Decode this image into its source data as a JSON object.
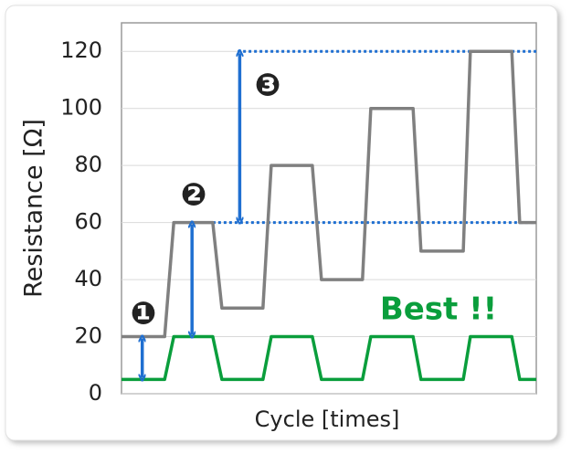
{
  "chart_data": {
    "type": "line",
    "y_label": "Resistance [Ω]",
    "x_label": "Cycle [times]",
    "ylim": [
      0,
      130
    ],
    "yticks": [
      0,
      20,
      40,
      60,
      80,
      100,
      120
    ],
    "grid": true,
    "xlim": [
      0,
      100
    ],
    "series": [
      {
        "name": "Resistance",
        "color": "#808080",
        "x": [
          0,
          10.4,
          12.6,
          22,
          24.2,
          34.1,
          36.1,
          46,
          48.2,
          58.1,
          60.1,
          70.3,
          72.2,
          82.4,
          84.1,
          94.1,
          96,
          100
        ],
        "values": [
          20,
          20,
          60,
          60,
          30,
          30,
          80,
          80,
          40,
          40,
          100,
          100,
          50,
          50,
          120,
          120,
          60,
          60
        ]
      },
      {
        "name": "Best",
        "color": "#0a9e3c",
        "x": [
          0,
          10.4,
          12.6,
          22,
          24.2,
          34.1,
          36.1,
          46,
          48.2,
          58.1,
          60.1,
          70.3,
          72.2,
          82.4,
          84.1,
          94.1,
          96,
          100
        ],
        "values": [
          5,
          5,
          20,
          20,
          5,
          5,
          20,
          20,
          5,
          5,
          20,
          20,
          5,
          5,
          20,
          20,
          5,
          5
        ]
      }
    ],
    "reference_lines": [
      60,
      120
    ],
    "reference_color": "#1f6fd1",
    "annotations": [
      {
        "text": "❶",
        "from": 5,
        "to": 20
      },
      {
        "text": "❷",
        "from": 20,
        "to": 60
      },
      {
        "text": "❸",
        "from": 60,
        "to": 120
      }
    ],
    "note": "Best !!"
  }
}
